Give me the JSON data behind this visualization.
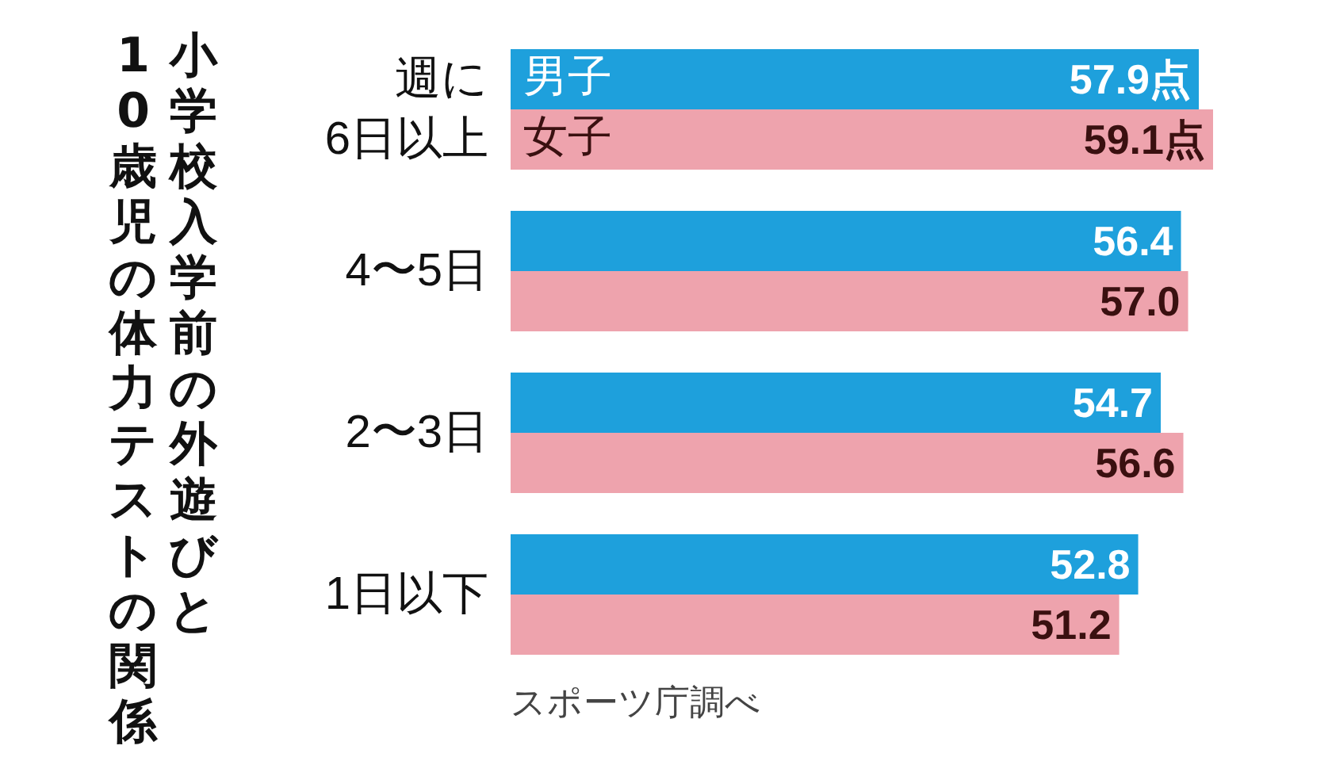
{
  "chart_data": {
    "type": "bar",
    "orientation": "horizontal",
    "title": "小学校入学前の外遊びと\n10歳児の体力テストの関係",
    "categories": [
      "週に\n6日以上",
      "4〜5日",
      "2〜3日",
      "1日以下"
    ],
    "series": [
      {
        "name": "男子",
        "color": "#1ea0dc",
        "values": [
          57.9,
          56.4,
          54.7,
          52.8
        ],
        "value_labels": [
          "57.9点",
          "56.4",
          "54.7",
          "52.8"
        ]
      },
      {
        "name": "女子",
        "color": "#eea3ad",
        "values": [
          59.1,
          57.0,
          56.6,
          51.2
        ],
        "value_labels": [
          "59.1点",
          "57.0",
          "56.6",
          "51.2"
        ]
      }
    ],
    "annotations": [
      "スポーツ庁調べ"
    ],
    "legend": false
  }
}
